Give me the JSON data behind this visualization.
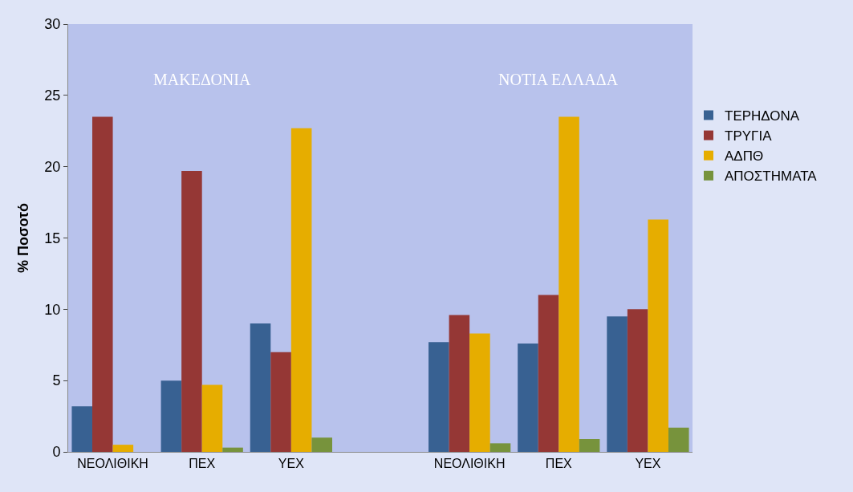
{
  "chart_data": {
    "type": "bar",
    "ylabel": "% Ποσοτό",
    "categories": [
      "ΝΕΟΛΙΘΙΚΗ",
      "ΠΕΧ",
      "ΥΕΧ",
      null,
      "ΝΕΟΛΙΘΙΚΗ",
      "ΠΕΧ",
      "ΥΕΧ"
    ],
    "series": [
      {
        "name": "ΤΕΡΗΔΟΝΑ",
        "color": "#386192",
        "values": [
          3.2,
          5.0,
          9.0,
          null,
          7.7,
          7.6,
          9.5
        ]
      },
      {
        "name": "ΤΡΥΓΙΑ",
        "color": "#953735",
        "values": [
          23.5,
          19.7,
          7.0,
          null,
          9.6,
          11.0,
          10.0
        ]
      },
      {
        "name": "ΑΔΠΘ",
        "color": "#e6ad00",
        "values": [
          0.5,
          4.7,
          22.7,
          null,
          8.3,
          23.5,
          16.3
        ]
      },
      {
        "name": "ΑΠΟΣΤΗΜΑΤΑ",
        "color": "#77933c",
        "values": [
          null,
          0.3,
          1.0,
          null,
          0.6,
          0.9,
          1.7
        ]
      }
    ],
    "annotations": [
      "ΜΑΚΕΔΟΝΙΑ",
      "ΝΟΤΙΑ ΕΛΛΑΔΑ"
    ],
    "ylim": [
      0,
      30
    ],
    "yticks": [
      0,
      5,
      10,
      15,
      20,
      25,
      30
    ],
    "grid": false,
    "legend": "right"
  }
}
